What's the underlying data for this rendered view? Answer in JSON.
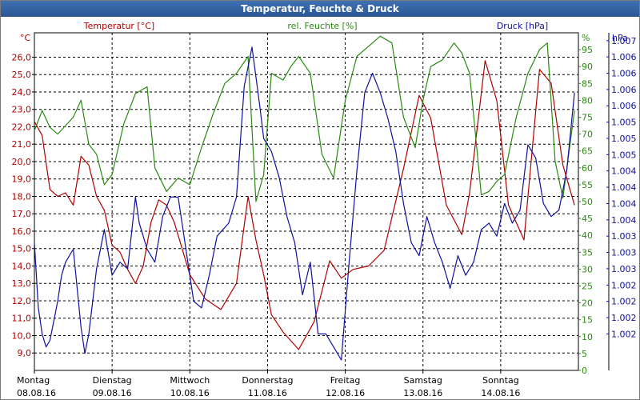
{
  "window": {
    "title": "Temperatur, Feuchte & Druck"
  },
  "colors": {
    "temperature": "#b00000",
    "humidity": "#2a8a10",
    "pressure": "#1010a0",
    "grid": "#000000"
  },
  "chart_data": {
    "type": "line",
    "title": "Temperatur, Feuchte & Druck",
    "grid": true,
    "axes": {
      "temperature": {
        "label": "Temperatur [°C]",
        "unit": "°C",
        "range": [
          8.0,
          27.4
        ],
        "ticks": [
          "9,0",
          "10,0",
          "11,0",
          "12,0",
          "13,0",
          "14,0",
          "15,0",
          "16,0",
          "17,0",
          "18,0",
          "19,0",
          "20,0",
          "21,0",
          "22,0",
          "23,0",
          "24,0",
          "25,0",
          "26,0"
        ],
        "tick_values": [
          9,
          10,
          11,
          12,
          13,
          14,
          15,
          16,
          17,
          18,
          19,
          20,
          21,
          22,
          23,
          24,
          25,
          26
        ]
      },
      "humidity": {
        "label": "rel. Feuchte [%]",
        "unit": "%",
        "range": [
          0,
          100
        ],
        "ticks": [
          "0",
          "5",
          "10",
          "15",
          "20",
          "25",
          "30",
          "35",
          "40",
          "45",
          "50",
          "55",
          "60",
          "65",
          "70",
          "75",
          "80",
          "85",
          "90",
          "95"
        ],
        "tick_values": [
          0,
          5,
          10,
          15,
          20,
          25,
          30,
          35,
          40,
          45,
          50,
          55,
          60,
          65,
          70,
          75,
          80,
          85,
          90,
          95
        ]
      },
      "pressure": {
        "label": "Druck [hPa]",
        "unit": "hPa",
        "range": [
          1001.94,
          1007.12
        ],
        "ticks": [
          "1.007",
          "1.006",
          "1.006",
          "1.006",
          "1.006",
          "1.005",
          "1.005",
          "1.005",
          "1.004",
          "1.004",
          "1.004",
          "1.004",
          "1.003",
          "1.003",
          "1.003",
          "1.002",
          "1.002",
          "1.002",
          "1.002"
        ],
        "tick_values": [
          1007.0,
          1006.75,
          1006.5,
          1006.25,
          1006.0,
          1005.75,
          1005.5,
          1005.25,
          1005.0,
          1004.75,
          1004.5,
          1004.25,
          1004.0,
          1003.75,
          1003.5,
          1003.25,
          1003.0,
          1002.75,
          1002.5
        ]
      },
      "x": {
        "range": [
          0,
          7
        ],
        "days": [
          {
            "day": "Montag",
            "date": "08.08.16"
          },
          {
            "day": "Dienstag",
            "date": "09.08.16"
          },
          {
            "day": "Mittwoch",
            "date": "10.08.16"
          },
          {
            "day": "Donnerstag",
            "date": "11.08.16"
          },
          {
            "day": "Freitag",
            "date": "12.08.16"
          },
          {
            "day": "Samstag",
            "date": "13.08.16"
          },
          {
            "day": "Sonntag",
            "date": "14.08.16"
          }
        ]
      }
    },
    "series": [
      {
        "name": "Temperatur [°C]",
        "axis": "temperature",
        "x": [
          0,
          0.1,
          0.2,
          0.3,
          0.4,
          0.5,
          0.6,
          0.7,
          0.8,
          0.9,
          1.0,
          1.1,
          1.2,
          1.3,
          1.4,
          1.5,
          1.6,
          1.7,
          1.8,
          1.9,
          2.0,
          2.2,
          2.4,
          2.6,
          2.75,
          2.85,
          2.95,
          3.05,
          3.2,
          3.4,
          3.6,
          3.8,
          3.95,
          4.1,
          4.3,
          4.5,
          4.75,
          4.95,
          5.1,
          5.3,
          5.5,
          5.6,
          5.7,
          5.8,
          5.95,
          6.1,
          6.3,
          6.5,
          6.65,
          6.8,
          6.95
        ],
        "y": [
          22.3,
          21.5,
          18.4,
          18.0,
          18.2,
          17.5,
          20.3,
          19.8,
          18.0,
          17.2,
          15.2,
          14.8,
          13.8,
          13.0,
          14.0,
          16.5,
          17.8,
          17.5,
          16.5,
          15.0,
          13.5,
          12.1,
          11.5,
          13.0,
          18.0,
          15.5,
          13.5,
          11.2,
          10.2,
          9.2,
          10.8,
          14.3,
          13.3,
          13.8,
          14.0,
          14.9,
          19.6,
          23.8,
          22.5,
          17.5,
          15.8,
          18.2,
          22.0,
          25.8,
          23.5,
          17.5,
          15.5,
          25.3,
          24.5,
          19.8,
          17.5
        ]
      },
      {
        "name": "rel. Feuchte [%]",
        "axis": "humidity",
        "x": [
          0,
          0.1,
          0.2,
          0.3,
          0.5,
          0.6,
          0.7,
          0.8,
          0.9,
          1.0,
          1.15,
          1.3,
          1.45,
          1.55,
          1.7,
          1.85,
          2.0,
          2.15,
          2.3,
          2.45,
          2.6,
          2.75,
          2.85,
          2.95,
          3.05,
          3.2,
          3.3,
          3.4,
          3.55,
          3.7,
          3.85,
          4.0,
          4.15,
          4.3,
          4.45,
          4.6,
          4.75,
          4.9,
          5.0,
          5.1,
          5.25,
          5.4,
          5.5,
          5.6,
          5.75,
          5.85,
          5.95,
          6.05,
          6.2,
          6.35,
          6.5,
          6.6,
          6.7,
          6.8,
          6.95
        ],
        "y": [
          71,
          77,
          72,
          70,
          75,
          80,
          67,
          64,
          55,
          58,
          73,
          82,
          84,
          60,
          53,
          57,
          55,
          66,
          76,
          85,
          88,
          93,
          50,
          58,
          88,
          86,
          90,
          93,
          88,
          64,
          57,
          80,
          93,
          96,
          99,
          97,
          75,
          66,
          80,
          90,
          92,
          97,
          94,
          88,
          52,
          53,
          56,
          58,
          75,
          88,
          95,
          97,
          62,
          51,
          77
        ]
      },
      {
        "name": "Druck [hPa]",
        "axis": "pressure",
        "x": [
          0,
          0.05,
          0.1,
          0.15,
          0.2,
          0.25,
          0.3,
          0.35,
          0.4,
          0.5,
          0.6,
          0.65,
          0.7,
          0.8,
          0.9,
          1.0,
          1.1,
          1.2,
          1.3,
          1.35,
          1.45,
          1.55,
          1.65,
          1.75,
          1.85,
          1.95,
          2.05,
          2.15,
          2.25,
          2.35,
          2.5,
          2.6,
          2.7,
          2.8,
          2.9,
          2.95,
          3.05,
          3.15,
          3.25,
          3.35,
          3.45,
          3.55,
          3.65,
          3.75,
          3.85,
          3.95,
          4.05,
          4.15,
          4.25,
          4.35,
          4.45,
          4.55,
          4.65,
          4.75,
          4.85,
          4.95,
          5.05,
          5.15,
          5.25,
          5.35,
          5.45,
          5.55,
          5.65,
          5.75,
          5.85,
          5.95,
          6.05,
          6.15,
          6.25,
          6.35,
          6.45,
          6.55,
          6.65,
          6.75,
          6.85,
          6.95
        ],
        "y": [
          1003.9,
          1002.9,
          1002.5,
          1002.3,
          1002.4,
          1002.7,
          1003.0,
          1003.4,
          1003.6,
          1003.8,
          1002.6,
          1002.2,
          1002.5,
          1003.5,
          1004.1,
          1003.4,
          1003.6,
          1003.5,
          1004.6,
          1004.2,
          1003.8,
          1003.6,
          1004.3,
          1004.6,
          1004.6,
          1003.8,
          1003.0,
          1002.9,
          1003.4,
          1004.0,
          1004.2,
          1004.6,
          1006.3,
          1006.9,
          1006.0,
          1005.5,
          1005.3,
          1004.9,
          1004.3,
          1003.9,
          1003.1,
          1003.6,
          1002.5,
          1002.5,
          1002.3,
          1002.1,
          1003.6,
          1005.0,
          1006.2,
          1006.5,
          1006.2,
          1005.8,
          1005.3,
          1004.5,
          1003.9,
          1003.7,
          1004.3,
          1003.9,
          1003.6,
          1003.2,
          1003.7,
          1003.4,
          1003.6,
          1004.1,
          1004.2,
          1004.0,
          1004.5,
          1004.2,
          1004.4,
          1005.4,
          1005.2,
          1004.5,
          1004.3,
          1004.4,
          1005.0,
          1006.2
        ]
      }
    ]
  }
}
